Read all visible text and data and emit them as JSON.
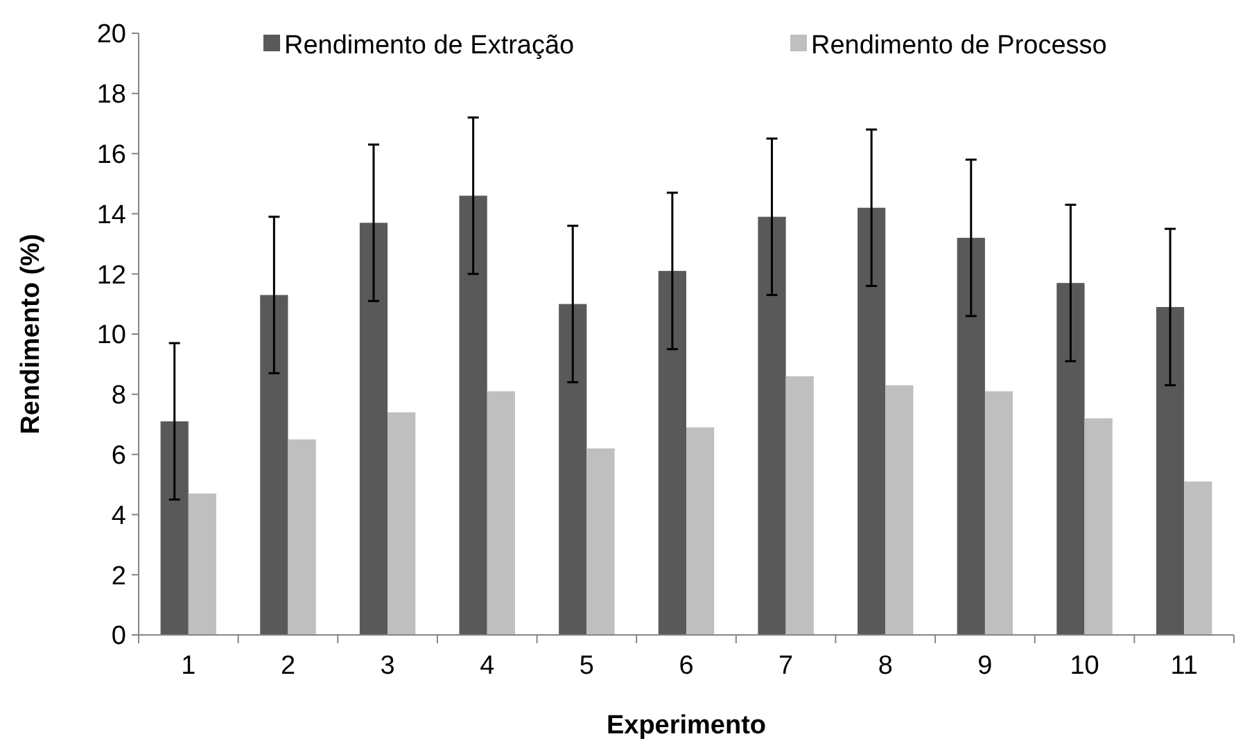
{
  "chart_data": {
    "type": "bar",
    "xlabel": "Experimento",
    "ylabel": "Rendimento (%)",
    "categories": [
      "1",
      "2",
      "3",
      "4",
      "5",
      "6",
      "7",
      "8",
      "9",
      "10",
      "11"
    ],
    "series": [
      {
        "name": "Rendimento de Extração",
        "color": "#595959",
        "values": [
          7.1,
          11.3,
          13.7,
          14.6,
          11.0,
          12.1,
          13.9,
          14.2,
          13.2,
          11.7,
          10.9
        ],
        "errors": [
          2.6,
          2.6,
          2.6,
          2.6,
          2.6,
          2.6,
          2.6,
          2.6,
          2.6,
          2.6,
          2.6
        ]
      },
      {
        "name": "Rendimento de Processo",
        "color": "#bfbfbf",
        "values": [
          4.7,
          6.5,
          7.4,
          8.1,
          6.2,
          6.9,
          8.6,
          8.3,
          8.1,
          7.2,
          5.1
        ]
      }
    ],
    "ylim": [
      0,
      20
    ],
    "yticks": [
      0,
      2,
      4,
      6,
      8,
      10,
      12,
      14,
      16,
      18,
      20
    ],
    "grid": false,
    "legend": "top"
  }
}
